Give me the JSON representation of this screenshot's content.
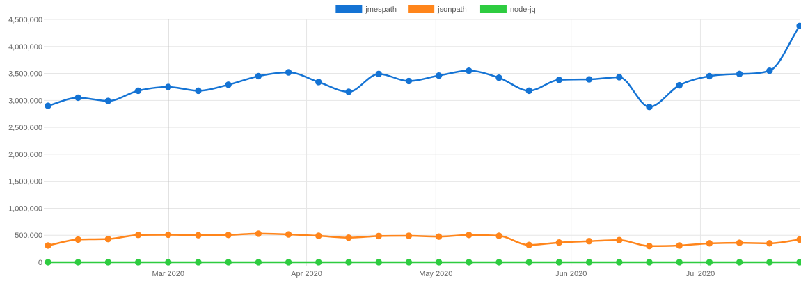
{
  "chart_data": {
    "type": "line",
    "title": "",
    "xlabel": "",
    "ylabel": "",
    "ylim": [
      0,
      4500000
    ],
    "y_ticks": [
      0,
      500000,
      1000000,
      1500000,
      2000000,
      2500000,
      3000000,
      3500000,
      4000000,
      4500000
    ],
    "y_tick_labels": [
      "0",
      "500,000",
      "1,000,000",
      "1,500,000",
      "2,000,000",
      "2,500,000",
      "3,000,000",
      "3,500,000",
      "4,000,000",
      "4,500,000"
    ],
    "x_tick_labels": [
      {
        "label": "Mar 2020",
        "index": 4
      },
      {
        "label": "Apr 2020",
        "index": 8.6
      },
      {
        "label": "May 2020",
        "index": 12.9
      },
      {
        "label": "Jun 2020",
        "index": 17.4
      },
      {
        "label": "Jul 2020",
        "index": 21.7
      }
    ],
    "highlight_index": 4,
    "grid": true,
    "legend_position": "top-center",
    "point_count": 26,
    "series": [
      {
        "name": "jmespath",
        "color": "#1473D4",
        "values": [
          2900000,
          3050000,
          2990000,
          3180000,
          3250000,
          3180000,
          3290000,
          3450000,
          3520000,
          3340000,
          3160000,
          3490000,
          3360000,
          3460000,
          3550000,
          3420000,
          3180000,
          3380000,
          3390000,
          3430000,
          2880000,
          3280000,
          3450000,
          3490000,
          3550000,
          4380000
        ]
      },
      {
        "name": "jsonpath",
        "color": "#FF851B",
        "values": [
          310000,
          420000,
          430000,
          505000,
          510000,
          500000,
          505000,
          530000,
          515000,
          490000,
          455000,
          485000,
          490000,
          475000,
          505000,
          490000,
          320000,
          365000,
          390000,
          410000,
          300000,
          310000,
          350000,
          360000,
          350000,
          420000
        ]
      },
      {
        "name": "node-jq",
        "color": "#2ECC40",
        "values": [
          800,
          800,
          800,
          800,
          800,
          800,
          800,
          800,
          800,
          800,
          800,
          800,
          800,
          800,
          800,
          800,
          800,
          800,
          800,
          800,
          800,
          800,
          800,
          800,
          800,
          800
        ]
      }
    ]
  }
}
